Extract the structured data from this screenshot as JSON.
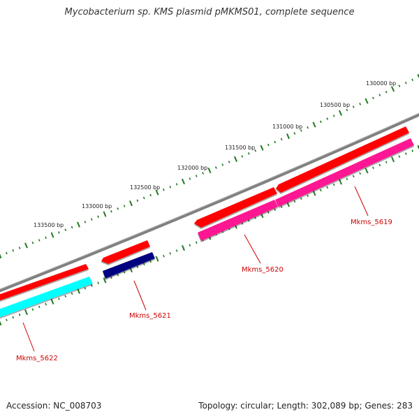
{
  "title": "Mycobacterium sp. KMS plasmid pMKMS01, complete sequence",
  "footer": {
    "accession": "Accession: NC_008703",
    "stats": "Topology: circular; Length: 302,089 bp; Genes: 283"
  },
  "colors": {
    "backbone": "#808080",
    "tick": "#1f7a1f",
    "forward_gene": "#ff0000",
    "label": "#cc0000",
    "cds_5622": "#00ffff",
    "cds_5621": "#000080",
    "cds_5620": "#ff1493",
    "cds_5619": "#ff1493"
  },
  "scale_labels": [
    "130000 bp",
    "130500 bp",
    "131000 bp",
    "131500 bp",
    "132000 bp",
    "132500 bp",
    "133000 bp",
    "133500 bp"
  ],
  "genes": [
    {
      "name": "Mkms_5622"
    },
    {
      "name": "Mkms_5621"
    },
    {
      "name": "Mkms_5620"
    },
    {
      "name": "Mkms_5619"
    }
  ]
}
